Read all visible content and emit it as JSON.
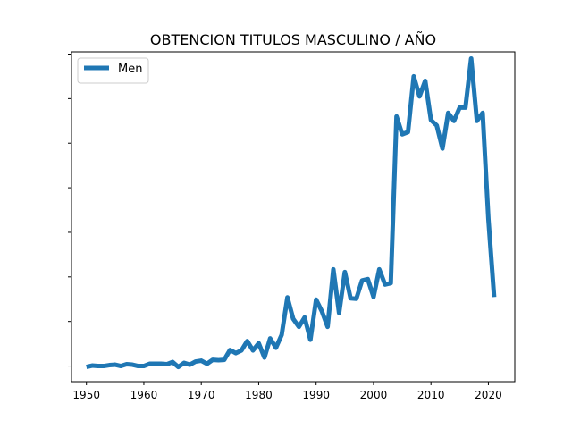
{
  "chart_data": {
    "type": "line",
    "title": "OBTENCION TITULOS MASCULINO / AÑO",
    "xlabel": "",
    "ylabel": "",
    "xlim": [
      1947.4,
      2024.6
    ],
    "ylim": [
      -0.35,
      7.05
    ],
    "x_ticks": [
      1950,
      1960,
      1970,
      1980,
      1990,
      2000,
      2010,
      2020
    ],
    "y_tick_count": 8,
    "legend": {
      "position": "upper-left",
      "entries": [
        "Men"
      ]
    },
    "grid": false,
    "series": [
      {
        "name": "Men",
        "color": "#1f77b4",
        "x": [
          1950,
          1951,
          1952,
          1953,
          1954,
          1955,
          1956,
          1957,
          1958,
          1959,
          1960,
          1961,
          1962,
          1963,
          1964,
          1965,
          1966,
          1967,
          1968,
          1969,
          1970,
          1971,
          1972,
          1973,
          1974,
          1975,
          1976,
          1977,
          1978,
          1979,
          1980,
          1981,
          1982,
          1983,
          1984,
          1985,
          1986,
          1987,
          1988,
          1989,
          1990,
          1991,
          1992,
          1993,
          1994,
          1995,
          1996,
          1997,
          1998,
          1999,
          2000,
          2001,
          2002,
          2003,
          2004,
          2005,
          2006,
          2007,
          2008,
          2009,
          2010,
          2011,
          2012,
          2013,
          2014,
          2015,
          2016,
          2017,
          2018,
          2019,
          2020,
          2021
        ],
        "values": [
          -0.02,
          0.01,
          0.0,
          0.0,
          0.02,
          0.03,
          0.0,
          0.04,
          0.03,
          0.0,
          0.0,
          0.05,
          0.05,
          0.05,
          0.04,
          0.09,
          -0.02,
          0.07,
          0.03,
          0.1,
          0.12,
          0.05,
          0.14,
          0.13,
          0.14,
          0.36,
          0.29,
          0.35,
          0.56,
          0.35,
          0.51,
          0.19,
          0.62,
          0.41,
          0.7,
          1.54,
          1.06,
          0.88,
          1.09,
          0.59,
          1.49,
          1.23,
          0.88,
          2.17,
          1.19,
          2.11,
          1.52,
          1.51,
          1.92,
          1.95,
          1.55,
          2.17,
          1.83,
          1.86,
          5.6,
          5.2,
          5.25,
          6.5,
          6.05,
          6.4,
          5.52,
          5.4,
          4.88,
          5.68,
          5.5,
          5.8,
          5.8,
          6.9,
          5.5,
          5.68,
          3.3,
          1.55
        ]
      }
    ]
  }
}
